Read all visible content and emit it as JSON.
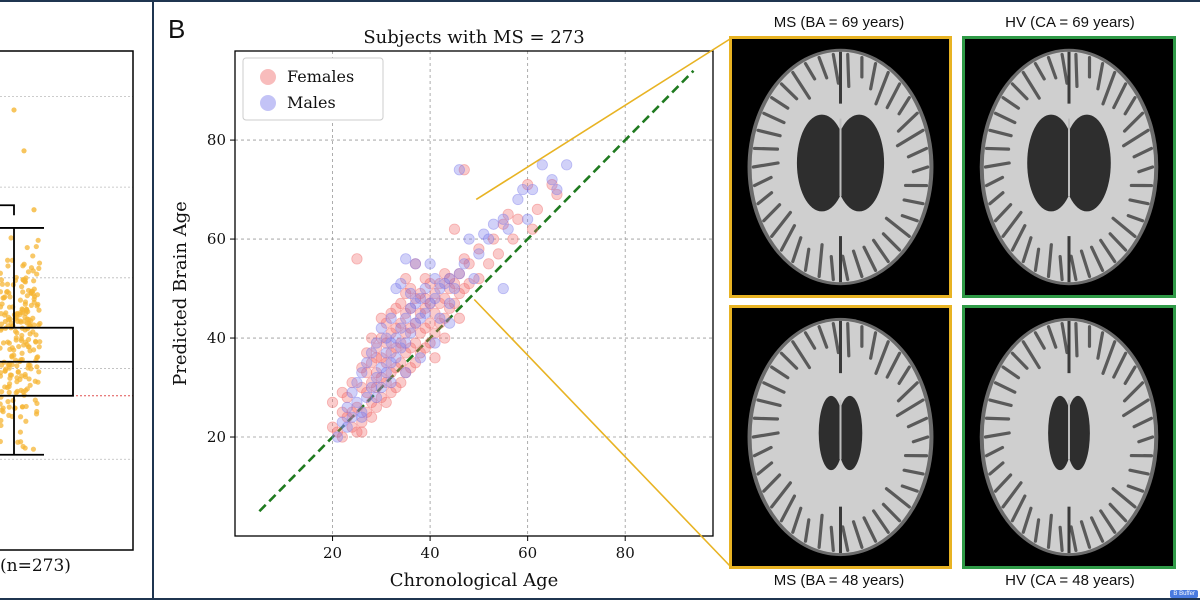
{
  "panel_label": "B",
  "left_panel": {
    "xlabel": "(n=273)",
    "box": {
      "whisker_low": 21,
      "q1": 34,
      "median": 41.5,
      "q3": 49,
      "whisker_high": 71,
      "outliers": [
        97,
        88,
        75
      ]
    },
    "bracket_top": 76,
    "reference_line": 34,
    "ylim": [
      0,
      110
    ],
    "gridlines": [
      20,
      40,
      60,
      80,
      100
    ],
    "point_color": "#f5b635"
  },
  "scans": {
    "top_left_caption": "MS (BA = 69 years)",
    "top_right_caption": "HV (CA = 69 years)",
    "bottom_left_caption": "MS (BA = 48 years)",
    "bottom_right_caption": "HV (CA = 48 years)",
    "ms_border_color": "#e8b323",
    "hv_border_color": "#2f9a47"
  },
  "watermark": "B Buffer",
  "chart_data": {
    "type": "scatter",
    "title": "Subjects with MS = 273",
    "xlabel": "Chronological Age",
    "ylabel": "Predicted Brain Age",
    "xlim": [
      0,
      98
    ],
    "ylim": [
      0,
      98
    ],
    "xticks": [
      20,
      40,
      60,
      80
    ],
    "yticks": [
      20,
      40,
      60,
      80
    ],
    "grid": true,
    "legend_position": "top-left",
    "identity_line": {
      "from": [
        5,
        5
      ],
      "to": [
        94,
        94
      ],
      "color": "#1f7a1f",
      "style": "dashed"
    },
    "callouts": [
      [
        47,
        68
      ],
      [
        47,
        49
      ]
    ],
    "series": [
      {
        "name": "Females",
        "color": "#f06a6a",
        "points": [
          [
            20,
            22
          ],
          [
            20,
            27
          ],
          [
            21,
            21
          ],
          [
            22,
            25
          ],
          [
            22,
            29
          ],
          [
            23,
            24
          ],
          [
            23,
            28
          ],
          [
            24,
            22
          ],
          [
            24,
            31
          ],
          [
            25,
            21
          ],
          [
            25,
            26
          ],
          [
            25,
            56
          ],
          [
            26,
            23
          ],
          [
            26,
            30
          ],
          [
            26,
            34
          ],
          [
            27,
            25
          ],
          [
            27,
            29
          ],
          [
            27,
            33
          ],
          [
            27,
            37
          ],
          [
            28,
            24
          ],
          [
            28,
            27
          ],
          [
            28,
            31
          ],
          [
            28,
            35
          ],
          [
            28,
            40
          ],
          [
            29,
            26
          ],
          [
            29,
            30
          ],
          [
            29,
            33
          ],
          [
            29,
            38
          ],
          [
            30,
            28
          ],
          [
            30,
            32
          ],
          [
            30,
            36
          ],
          [
            30,
            40
          ],
          [
            30,
            44
          ],
          [
            31,
            27
          ],
          [
            31,
            31
          ],
          [
            31,
            35
          ],
          [
            31,
            39
          ],
          [
            32,
            29
          ],
          [
            32,
            33
          ],
          [
            32,
            37
          ],
          [
            32,
            41
          ],
          [
            32,
            45
          ],
          [
            33,
            30
          ],
          [
            33,
            34
          ],
          [
            33,
            38
          ],
          [
            33,
            42
          ],
          [
            34,
            31
          ],
          [
            34,
            35
          ],
          [
            34,
            39
          ],
          [
            34,
            43
          ],
          [
            34,
            47
          ],
          [
            35,
            33
          ],
          [
            35,
            37
          ],
          [
            35,
            41
          ],
          [
            35,
            45
          ],
          [
            35,
            49
          ],
          [
            36,
            34
          ],
          [
            36,
            38
          ],
          [
            36,
            42
          ],
          [
            36,
            46
          ],
          [
            36,
            50
          ],
          [
            37,
            35
          ],
          [
            37,
            39
          ],
          [
            37,
            43
          ],
          [
            37,
            48
          ],
          [
            38,
            37
          ],
          [
            38,
            41
          ],
          [
            38,
            45
          ],
          [
            38,
            49
          ],
          [
            39,
            38
          ],
          [
            39,
            42
          ],
          [
            39,
            46
          ],
          [
            39,
            52
          ],
          [
            40,
            39
          ],
          [
            40,
            43
          ],
          [
            40,
            47
          ],
          [
            40,
            51
          ],
          [
            41,
            41
          ],
          [
            41,
            45
          ],
          [
            41,
            49
          ],
          [
            42,
            43
          ],
          [
            42,
            47
          ],
          [
            42,
            51
          ],
          [
            43,
            44
          ],
          [
            43,
            48
          ],
          [
            43,
            53
          ],
          [
            44,
            46
          ],
          [
            44,
            50
          ],
          [
            44,
            52
          ],
          [
            45,
            47
          ],
          [
            45,
            51
          ],
          [
            45,
            62
          ],
          [
            46,
            49
          ],
          [
            46,
            53
          ],
          [
            47,
            50
          ],
          [
            47,
            56
          ],
          [
            47,
            74
          ],
          [
            48,
            51
          ],
          [
            48,
            55
          ],
          [
            50,
            52
          ],
          [
            50,
            58
          ],
          [
            52,
            55
          ],
          [
            53,
            60
          ],
          [
            54,
            57
          ],
          [
            55,
            63
          ],
          [
            56,
            65
          ],
          [
            57,
            60
          ],
          [
            58,
            64
          ],
          [
            60,
            71
          ],
          [
            61,
            62
          ],
          [
            62,
            66
          ],
          [
            65,
            71
          ],
          [
            66,
            69
          ],
          [
            22,
            20
          ],
          [
            24,
            25
          ],
          [
            26,
            21
          ],
          [
            29,
            36
          ],
          [
            31,
            43
          ],
          [
            33,
            46
          ],
          [
            35,
            52
          ],
          [
            37,
            55
          ],
          [
            39,
            48
          ],
          [
            41,
            36
          ],
          [
            43,
            40
          ],
          [
            46,
            44
          ]
        ]
      },
      {
        "name": "Males",
        "color": "#7a7aea",
        "points": [
          [
            21,
            20
          ],
          [
            22,
            23
          ],
          [
            23,
            26
          ],
          [
            24,
            24
          ],
          [
            24,
            29
          ],
          [
            25,
            27
          ],
          [
            25,
            31
          ],
          [
            26,
            25
          ],
          [
            26,
            33
          ],
          [
            27,
            28
          ],
          [
            27,
            35
          ],
          [
            28,
            30
          ],
          [
            28,
            37
          ],
          [
            29,
            32
          ],
          [
            29,
            39
          ],
          [
            30,
            30
          ],
          [
            30,
            34
          ],
          [
            30,
            42
          ],
          [
            31,
            33
          ],
          [
            31,
            37
          ],
          [
            31,
            40
          ],
          [
            32,
            35
          ],
          [
            32,
            39
          ],
          [
            32,
            44
          ],
          [
            33,
            36
          ],
          [
            33,
            40
          ],
          [
            33,
            50
          ],
          [
            34,
            38
          ],
          [
            34,
            42
          ],
          [
            34,
            51
          ],
          [
            35,
            39
          ],
          [
            35,
            44
          ],
          [
            35,
            56
          ],
          [
            36,
            41
          ],
          [
            36,
            46
          ],
          [
            36,
            49
          ],
          [
            37,
            43
          ],
          [
            37,
            47
          ],
          [
            37,
            55
          ],
          [
            38,
            44
          ],
          [
            38,
            48
          ],
          [
            39,
            45
          ],
          [
            39,
            50
          ],
          [
            40,
            47
          ],
          [
            40,
            55
          ],
          [
            41,
            48
          ],
          [
            41,
            52
          ],
          [
            42,
            50
          ],
          [
            42,
            44
          ],
          [
            43,
            51
          ],
          [
            44,
            52
          ],
          [
            44,
            47
          ],
          [
            45,
            50
          ],
          [
            46,
            53
          ],
          [
            46,
            74
          ],
          [
            47,
            55
          ],
          [
            48,
            60
          ],
          [
            49,
            52
          ],
          [
            50,
            57
          ],
          [
            51,
            61
          ],
          [
            52,
            60
          ],
          [
            53,
            63
          ],
          [
            55,
            50
          ],
          [
            55,
            64
          ],
          [
            56,
            62
          ],
          [
            58,
            68
          ],
          [
            59,
            70
          ],
          [
            60,
            64
          ],
          [
            61,
            70
          ],
          [
            63,
            75
          ],
          [
            65,
            72
          ],
          [
            66,
            70
          ],
          [
            68,
            75
          ],
          [
            23,
            22
          ],
          [
            26,
            24
          ],
          [
            29,
            28
          ],
          [
            32,
            31
          ],
          [
            35,
            33
          ],
          [
            38,
            36
          ],
          [
            41,
            39
          ],
          [
            44,
            43
          ]
        ]
      }
    ]
  }
}
